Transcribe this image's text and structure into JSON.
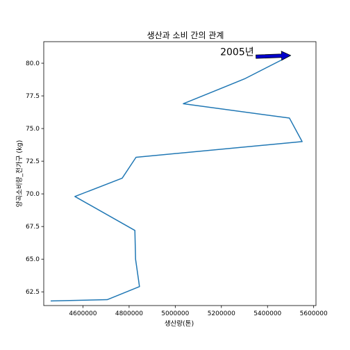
{
  "chart_data": {
    "type": "line",
    "title": "생산과 소비 간의 관계",
    "xlabel": "생산량(톤)",
    "ylabel": "양곡소비량_전가구 (kg)",
    "xlim": [
      4430000,
      5610000
    ],
    "ylim": [
      61.45,
      81.65
    ],
    "xticks": [
      4600000,
      4800000,
      5000000,
      5200000,
      5400000,
      5600000
    ],
    "xtick_labels": [
      "4600000",
      "4800000",
      "5000000",
      "5200000",
      "5400000",
      "5600000"
    ],
    "yticks": [
      62.5,
      65.0,
      67.5,
      70.0,
      72.5,
      75.0,
      77.5,
      80.0
    ],
    "ytick_labels": [
      "62.5",
      "65.0",
      "67.5",
      "70.0",
      "72.5",
      "75.0",
      "77.5",
      "80.0"
    ],
    "grid": false,
    "line_color": "#1f77b4",
    "series": [
      {
        "x": [
          5500000,
          5300000,
          5035000,
          5495000,
          5550000,
          4830000,
          4770000,
          4565000,
          4825000,
          4828000,
          4845000,
          4705000,
          4460000
        ],
        "y": [
          80.6,
          78.8,
          76.9,
          75.8,
          74.0,
          72.8,
          71.2,
          69.8,
          67.2,
          65.0,
          62.9,
          61.9,
          61.8
        ]
      }
    ],
    "annotation": {
      "text": "2005년",
      "point": [
        5500000,
        80.6
      ],
      "text_pos": [
        5350000,
        80.5
      ],
      "arrow_color": "#0000cc"
    }
  }
}
